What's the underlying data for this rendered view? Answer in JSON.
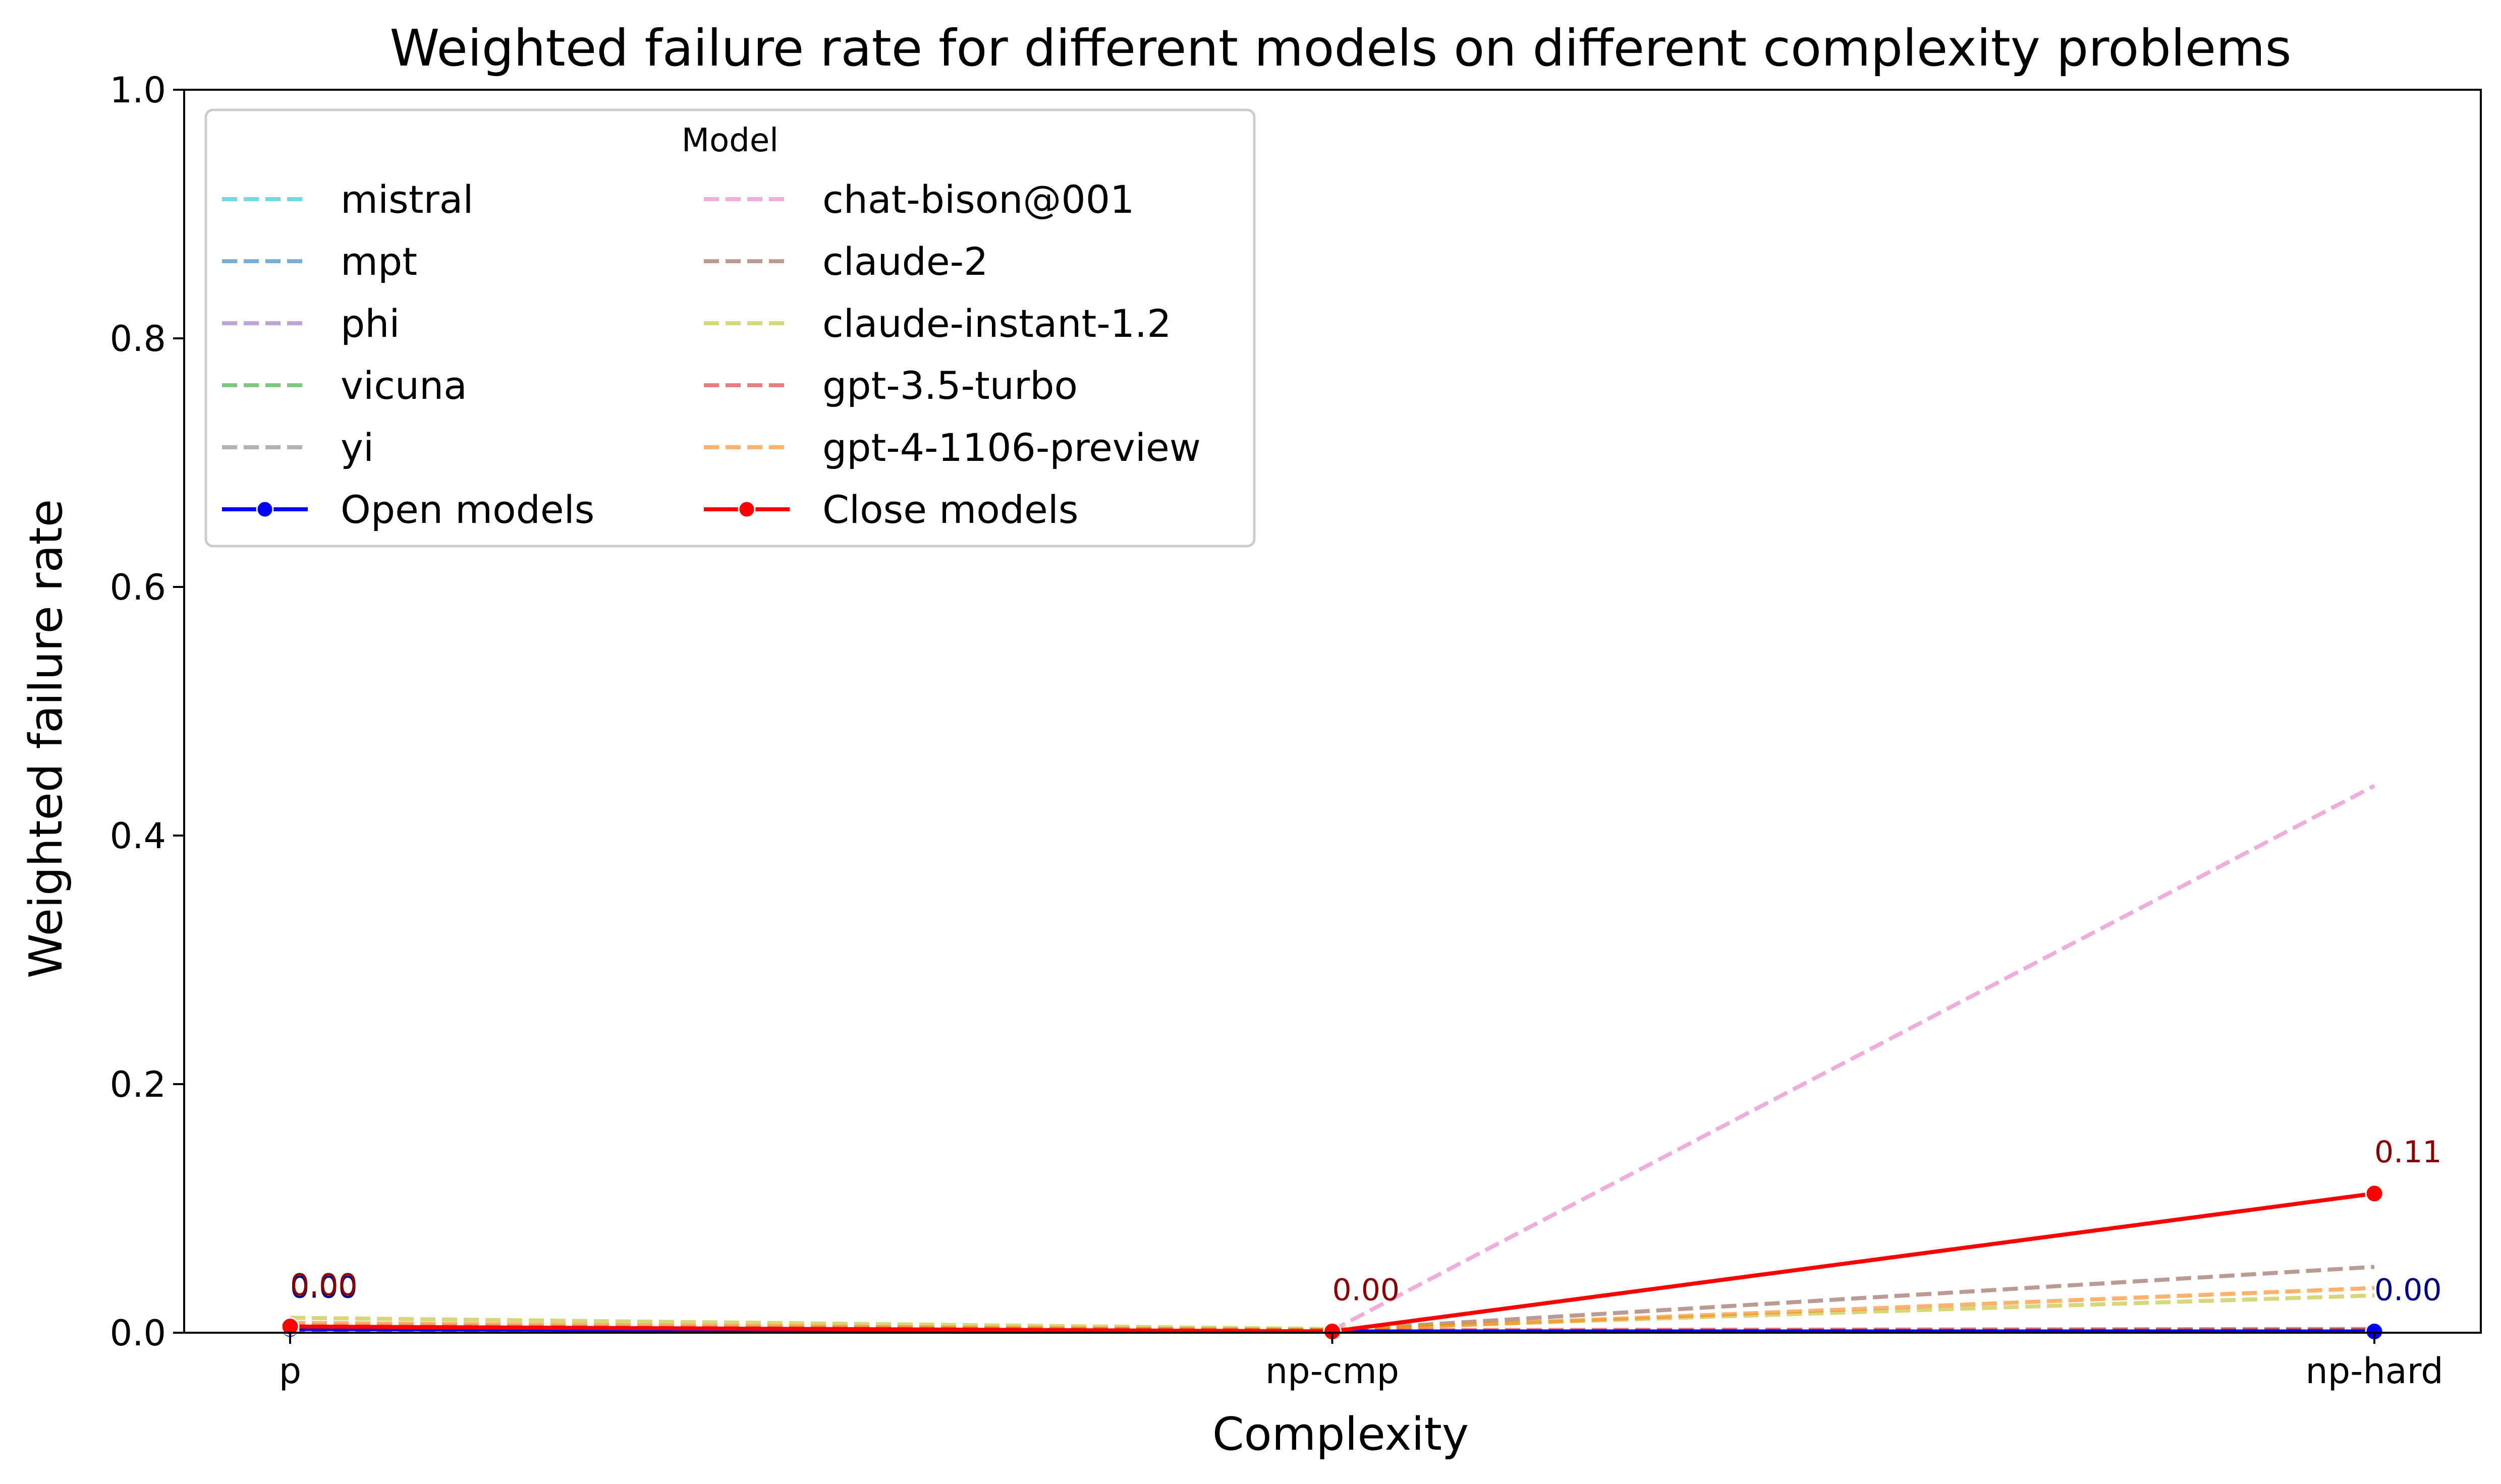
{
  "chart_data": {
    "type": "line",
    "title": "Weighted failure rate for different models on different complexity problems",
    "xlabel": "Complexity",
    "ylabel": "Weighted failure rate",
    "categories": [
      "p",
      "np-cmp",
      "np-hard"
    ],
    "ylim": [
      0,
      1.0
    ],
    "yticks": [
      "0.0",
      "0.2",
      "0.4",
      "0.6",
      "0.8",
      "1.0"
    ],
    "grid": false,
    "legend": {
      "title": "Model",
      "placement": "top-left",
      "columns": 2
    },
    "series": [
      {
        "name": "mistral",
        "color": "#17becf",
        "style": "dashed",
        "values": [
          0.002,
          0.001,
          0.002
        ]
      },
      {
        "name": "mpt",
        "color": "#1f77b4",
        "style": "dashed",
        "values": [
          0.002,
          0.001,
          0.002
        ]
      },
      {
        "name": "phi",
        "color": "#9467bd",
        "style": "dashed",
        "values": [
          0.002,
          0.001,
          0.002
        ]
      },
      {
        "name": "vicuna",
        "color": "#2ca02c",
        "style": "dashed",
        "values": [
          0.002,
          0.001,
          0.002
        ]
      },
      {
        "name": "yi",
        "color": "#7f7f7f",
        "style": "dashed",
        "values": [
          0.002,
          0.001,
          0.002
        ]
      },
      {
        "name": "Open models",
        "color": "#0000ff",
        "style": "solid-marker",
        "values": [
          0.003,
          0.001,
          0.001
        ]
      },
      {
        "name": "chat-bison@001",
        "color": "#e377c2",
        "style": "dashed",
        "values": [
          0.006,
          0.002,
          0.44
        ]
      },
      {
        "name": "claude-2",
        "color": "#8c564b",
        "style": "dashed",
        "values": [
          0.005,
          0.002,
          0.053
        ]
      },
      {
        "name": "claude-instant-1.2",
        "color": "#bcbd22",
        "style": "dashed",
        "values": [
          0.012,
          0.003,
          0.03
        ]
      },
      {
        "name": "gpt-3.5-turbo",
        "color": "#d62728",
        "style": "dashed",
        "values": [
          0.004,
          0.002,
          0.003
        ]
      },
      {
        "name": "gpt-4-1106-preview",
        "color": "#ff7f0e",
        "style": "dashed",
        "values": [
          0.008,
          0.002,
          0.036
        ]
      },
      {
        "name": "Close models",
        "color": "#ff0000",
        "style": "solid-marker",
        "values": [
          0.005,
          0.001,
          0.112
        ]
      }
    ],
    "annotations": {
      "Open models": {
        "color": "#00008b",
        "labels": [
          "0.00",
          "",
          "0.00"
        ]
      },
      "Close models": {
        "color": "#8b0000",
        "labels": [
          "0.00",
          "0.00",
          "0.11"
        ]
      }
    }
  }
}
